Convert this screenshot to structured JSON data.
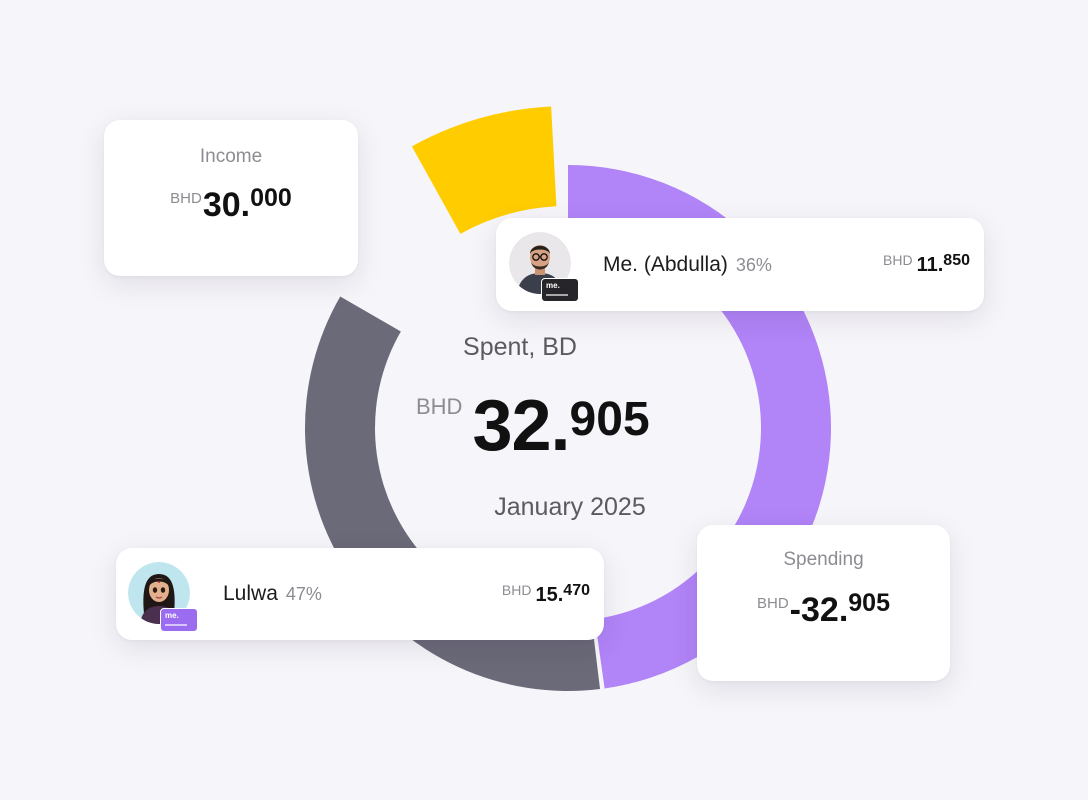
{
  "colors": {
    "income": "#ffcc00",
    "me": "#b184f7",
    "lulwa": "#6b6a78",
    "background": "#f6f5f9"
  },
  "income": {
    "label": "Income",
    "currency": "BHD",
    "integer": "30.",
    "decimal": "000"
  },
  "spending": {
    "label": "Spending",
    "currency": "BHD",
    "integer": "-32.",
    "decimal": "905"
  },
  "center": {
    "label": "Spent, BD",
    "currency": "BHD",
    "integer": "32.",
    "decimal": "905",
    "period": "January 2025"
  },
  "people": {
    "me": {
      "name": "Me. (Abdulla)",
      "percent": "36%",
      "currency": "BHD",
      "integer": "11.",
      "decimal": "850",
      "card_brand": "me.",
      "avatar_icon": "man-avatar-icon"
    },
    "lulwa": {
      "name": "Lulwa",
      "percent": "47%",
      "currency": "BHD",
      "integer": "15.",
      "decimal": "470",
      "card_brand": "me.",
      "avatar_icon": "woman-avatar-icon"
    }
  }
}
